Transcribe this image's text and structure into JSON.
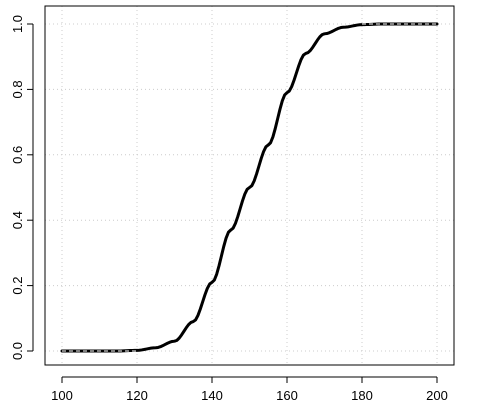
{
  "chart_data": {
    "type": "line",
    "title": "",
    "xlabel": "",
    "ylabel": "",
    "xlim": [
      100,
      200
    ],
    "ylim": [
      0,
      1
    ],
    "x_ticks": [
      100,
      120,
      140,
      160,
      180,
      200
    ],
    "y_ticks": [
      0,
      0.2,
      0.4,
      0.6,
      0.8,
      1
    ],
    "x_tick_labels": [
      "100",
      "120",
      "140",
      "160",
      "180",
      "200"
    ],
    "y_tick_labels": [
      "0.0",
      "0.2",
      "0.4",
      "0.6",
      "0.8",
      "1.0"
    ],
    "grid": true,
    "series": [
      {
        "x": [
          100,
          105,
          110,
          115,
          120,
          125,
          130,
          135,
          140,
          145,
          150,
          155,
          160,
          165,
          170,
          175,
          180,
          185,
          190,
          195,
          200
        ],
        "y": [
          0.0,
          0.0,
          0.0,
          0.0,
          0.002,
          0.01,
          0.03,
          0.09,
          0.21,
          0.37,
          0.5,
          0.63,
          0.79,
          0.91,
          0.97,
          0.99,
          0.998,
          1.0,
          1.0,
          1.0,
          1.0
        ],
        "color": "#000000"
      },
      {
        "x": [
          100,
          120,
          180,
          200
        ],
        "y": [
          0.0,
          0.0,
          1.0,
          1.0
        ],
        "color": "#ffffff",
        "dashed": true
      }
    ]
  }
}
